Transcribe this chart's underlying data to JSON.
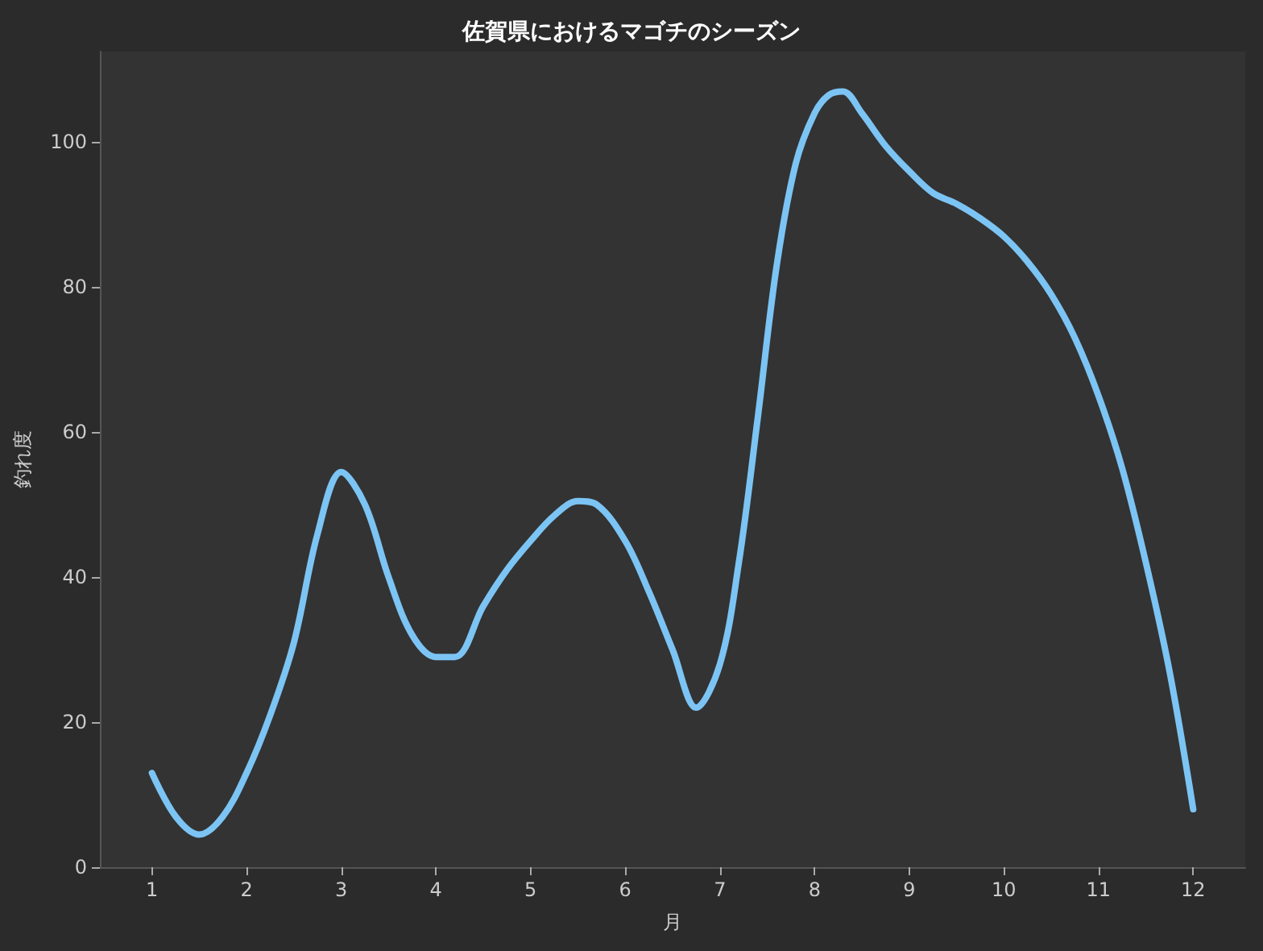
{
  "chart_data": {
    "type": "line",
    "title": "佐賀県におけるマゴチのシーズン",
    "xlabel": "月",
    "ylabel": "釣れ度",
    "series": [
      {
        "color": "#7cc4f4",
        "x": [
          1,
          1.25,
          1.5,
          1.75,
          2,
          2.25,
          2.5,
          2.75,
          3,
          3.25,
          3.5,
          3.75,
          4,
          4.2,
          4.5,
          4.75,
          5,
          5.25,
          5.5,
          5.7,
          6,
          6.25,
          6.5,
          6.75,
          7,
          7.2,
          7.4,
          7.6,
          7.8,
          8,
          8.15,
          8.3,
          8.5,
          8.75,
          9,
          9.25,
          9.5,
          9.75,
          10,
          10.25,
          10.5,
          10.75,
          11,
          11.25,
          11.5,
          11.75,
          12
        ],
        "values": [
          13,
          7,
          4.5,
          7,
          13,
          21,
          31,
          46,
          54.5,
          50,
          40,
          32,
          29,
          29,
          36,
          41,
          45,
          48.5,
          50.5,
          50,
          45,
          38,
          30,
          22,
          28,
          42,
          62,
          83,
          97,
          104,
          106.5,
          107,
          104,
          99.5,
          96,
          93,
          91.5,
          89.5,
          87,
          83.5,
          79,
          73,
          65,
          55,
          42,
          27,
          8
        ]
      }
    ],
    "xlim": [
      0.45,
      12.55
    ],
    "xticks": [
      1,
      2,
      3,
      4,
      5,
      6,
      7,
      8,
      9,
      10,
      11,
      12
    ],
    "ylim": [
      0,
      112.5
    ],
    "yticks": [
      0,
      20,
      40,
      60,
      80,
      100
    ],
    "grid": false,
    "marker": "none",
    "line_style": "solid"
  }
}
